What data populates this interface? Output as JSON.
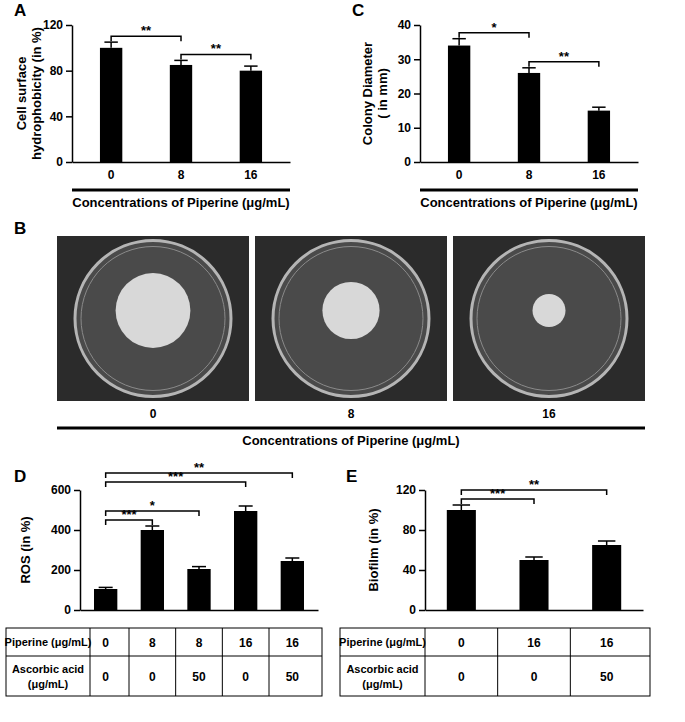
{
  "chart_data": [
    {
      "type": "bar",
      "title": "A",
      "categories": [
        "0",
        "8",
        "16"
      ],
      "values": [
        100,
        85,
        80
      ],
      "errors": [
        5,
        4,
        4
      ],
      "color": "#000000",
      "ylim": [
        0,
        120
      ],
      "yticks": [
        0,
        40,
        80,
        120
      ],
      "ylabel": [
        "Cell surface",
        "hydrophobicity (in %)"
      ],
      "xlabel": "Concentrations of Piperine (μg/mL)",
      "significance": [
        {
          "from": 0,
          "to": 1,
          "label": "**"
        },
        {
          "from": 1,
          "to": 2,
          "label": "**"
        }
      ]
    },
    {
      "type": "bar",
      "title": "C",
      "categories": [
        "0",
        "8",
        "16"
      ],
      "values": [
        34,
        26,
        15
      ],
      "errors": [
        2,
        1.5,
        1
      ],
      "color": "#000000",
      "ylim": [
        0,
        40
      ],
      "yticks": [
        0,
        10,
        20,
        30,
        40
      ],
      "ylabel": [
        "Colony Diameter",
        "( in mm)"
      ],
      "xlabel": "Concentrations of Piperine (μg/mL)",
      "significance": [
        {
          "from": 0,
          "to": 1,
          "label": "*"
        },
        {
          "from": 1,
          "to": 2,
          "label": "**"
        }
      ]
    },
    {
      "type": "bar",
      "title": "D",
      "values": [
        105,
        400,
        205,
        495,
        245
      ],
      "errors": [
        8,
        20,
        12,
        25,
        15
      ],
      "color": "#000000",
      "ylim": [
        0,
        600
      ],
      "yticks": [
        0,
        200,
        400,
        600
      ],
      "ylabel": [
        "ROS (in %)"
      ],
      "table": [
        {
          "label": [
            "Piperine (μg/mL)"
          ],
          "values": [
            0,
            8,
            8,
            16,
            16
          ]
        },
        {
          "label": [
            "Ascorbic acid",
            "(μg/mL)"
          ],
          "values": [
            0,
            0,
            50,
            0,
            50
          ]
        }
      ],
      "significance": [
        {
          "from": 0,
          "to": 1,
          "label": "***"
        },
        {
          "from": 0,
          "to": 2,
          "label": "*"
        },
        {
          "from": 0,
          "to": 3,
          "label": "***"
        },
        {
          "from": 0,
          "to": 4,
          "label": "**"
        }
      ]
    },
    {
      "type": "bar",
      "title": "E",
      "values": [
        100,
        50,
        65
      ],
      "errors": [
        5,
        3,
        4
      ],
      "color": "#000000",
      "ylim": [
        0,
        120
      ],
      "yticks": [
        0,
        40,
        80,
        120
      ],
      "ylabel": [
        "Biofilm (in %)"
      ],
      "table": [
        {
          "label": [
            "Piperine (μg/mL)"
          ],
          "values": [
            0,
            16,
            16
          ]
        },
        {
          "label": [
            "Ascorbic acid",
            "(μg/mL)"
          ],
          "values": [
            0,
            0,
            50
          ]
        }
      ],
      "significance": [
        {
          "from": 0,
          "to": 1,
          "label": "***"
        },
        {
          "from": 0,
          "to": 2,
          "label": "**"
        }
      ]
    }
  ],
  "panel_b": {
    "title": "B",
    "labels": [
      "0",
      "8",
      "16"
    ],
    "xlabel": "Concentrations of Piperine (μg/mL)"
  }
}
